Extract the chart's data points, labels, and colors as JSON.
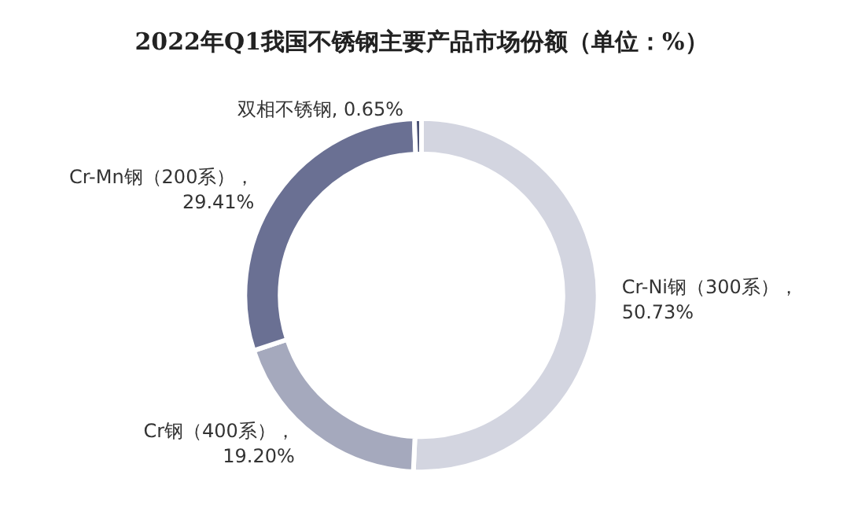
{
  "chart_data": {
    "type": "donut",
    "title": "2022年Q1我国不锈钢主要产品市场份额（单位：%）",
    "categories": [
      "Cr-Ni钢（300系）",
      "Cr钢（400系）",
      "Cr-Mn钢（200系）",
      "双相不锈钢"
    ],
    "values": [
      50.73,
      19.2,
      29.41,
      0.65
    ],
    "colors": [
      "#d3d5e0",
      "#a5a9bd",
      "#6a7093",
      "#4b5275"
    ],
    "value_labels": [
      "，\n50.73%",
      "，\n19.20%",
      "，\n29.41%",
      ", 0.65%"
    ],
    "legend": false
  }
}
